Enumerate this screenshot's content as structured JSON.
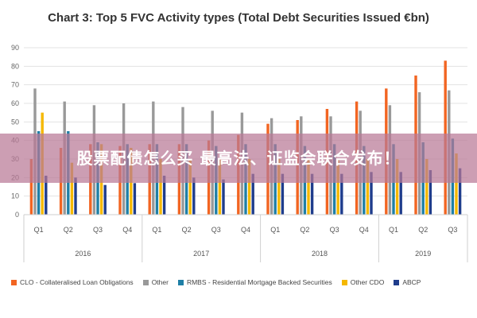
{
  "overlay": {
    "text": "股票配债怎么买 最高法、证监会联合发布！"
  },
  "chart_data": {
    "type": "bar",
    "title": "Chart 3: Top 5 FVC Activity types (Total Debt Securities Issued €bn)",
    "xlabel": "",
    "ylabel": "",
    "ylim": [
      0,
      90
    ],
    "yticks": [
      0,
      10,
      20,
      30,
      40,
      50,
      60,
      70,
      80,
      90
    ],
    "grid": true,
    "legend_position": "bottom",
    "categories": [
      "Q1",
      "Q2",
      "Q3",
      "Q4",
      "Q1",
      "Q2",
      "Q3",
      "Q4",
      "Q1",
      "Q2",
      "Q3",
      "Q4",
      "Q1",
      "Q2",
      "Q3"
    ],
    "groups": [
      {
        "label": "2016",
        "count": 4
      },
      {
        "label": "2017",
        "count": 4
      },
      {
        "label": "2018",
        "count": 4
      },
      {
        "label": "2019",
        "count": 3
      }
    ],
    "series": [
      {
        "name": "CLO - Collateralised Loan Obligations",
        "color": "#f26522",
        "values": [
          30,
          36,
          38,
          37,
          38,
          38,
          40,
          43,
          49,
          51,
          57,
          61,
          68,
          75,
          83
        ]
      },
      {
        "name": "Other",
        "color": "#999999",
        "values": [
          68,
          61,
          59,
          60,
          61,
          58,
          56,
          55,
          52,
          53,
          53,
          56,
          59,
          66,
          67
        ]
      },
      {
        "name": "RMBS - Residential Mortgage Backed Securities",
        "color": "#1f7fa6",
        "values": [
          45,
          45,
          39,
          38,
          38,
          38,
          37,
          38,
          38,
          37,
          38,
          37,
          38,
          39,
          41
        ]
      },
      {
        "name": "Other CDO",
        "color": "#f5b800",
        "values": [
          55,
          28,
          38,
          36,
          30,
          30,
          30,
          30,
          30,
          30,
          30,
          30,
          30,
          30,
          33
        ]
      },
      {
        "name": "ABCP",
        "color": "#1f3d8c",
        "values": [
          21,
          20,
          16,
          17,
          21,
          20,
          19,
          22,
          22,
          22,
          22,
          23,
          23,
          24,
          25
        ]
      }
    ]
  }
}
